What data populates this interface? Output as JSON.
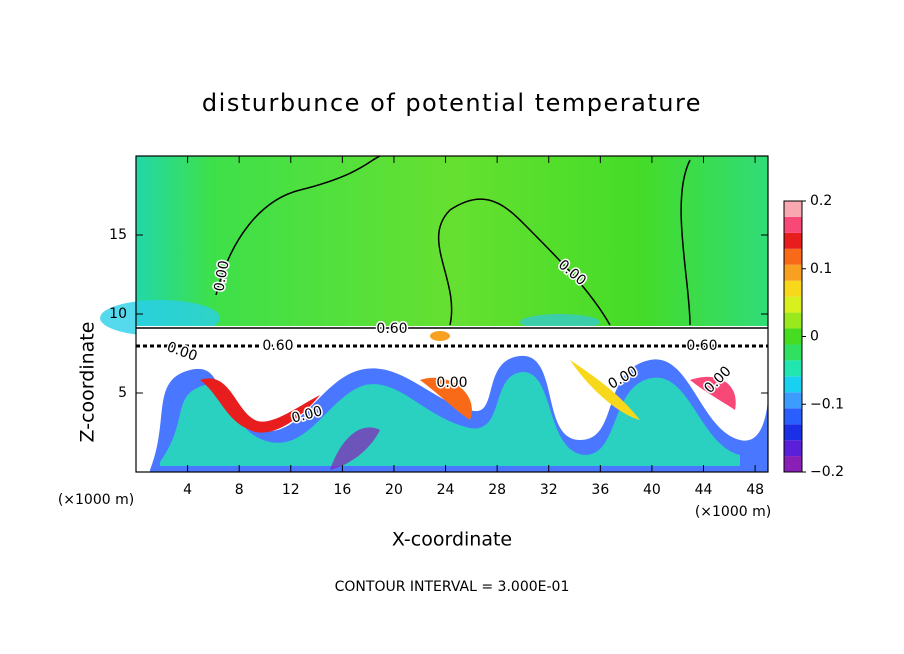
{
  "chart_data": {
    "type": "contour",
    "title": "disturbunce of potential temperature",
    "x_label": "X-coordinate",
    "y_label": "Z-coordinate",
    "x_unit_left": "(×1000 m)",
    "x_unit_right": "(×1000 m)",
    "footer": "CONTOUR INTERVAL = 3.000E-01",
    "xlim": [
      0,
      49
    ],
    "xticks": [
      4,
      8,
      12,
      16,
      20,
      24,
      28,
      32,
      36,
      40,
      44,
      48
    ],
    "ylim": [
      0,
      20
    ],
    "yticks": [
      5,
      10,
      15
    ],
    "contour_labels": [
      "0.00",
      "0.60",
      "0.60",
      "0.00",
      "0.00",
      "0.60",
      "0.00",
      "0.00",
      "0.00",
      "0.00"
    ],
    "colorbar": {
      "lim": [
        -0.2,
        0.2
      ],
      "ticks": [
        0.2,
        0.1,
        0,
        {
          "value": -0.1,
          "label": "−0.1"
        },
        {
          "value": -0.2,
          "label": "−0.2"
        }
      ],
      "colors": [
        "#8a1fb8",
        "#5a1fd8",
        "#1a2fe6",
        "#2a5fff",
        "#3c9cff",
        "#18d0f0",
        "#22e6b0",
        "#30e060",
        "#46dc22",
        "#9ae81e",
        "#d8f01e",
        "#f8d81a",
        "#f8a020",
        "#f86a18",
        "#e81e1e",
        "#f84878",
        "#f8a8b0"
      ]
    }
  }
}
